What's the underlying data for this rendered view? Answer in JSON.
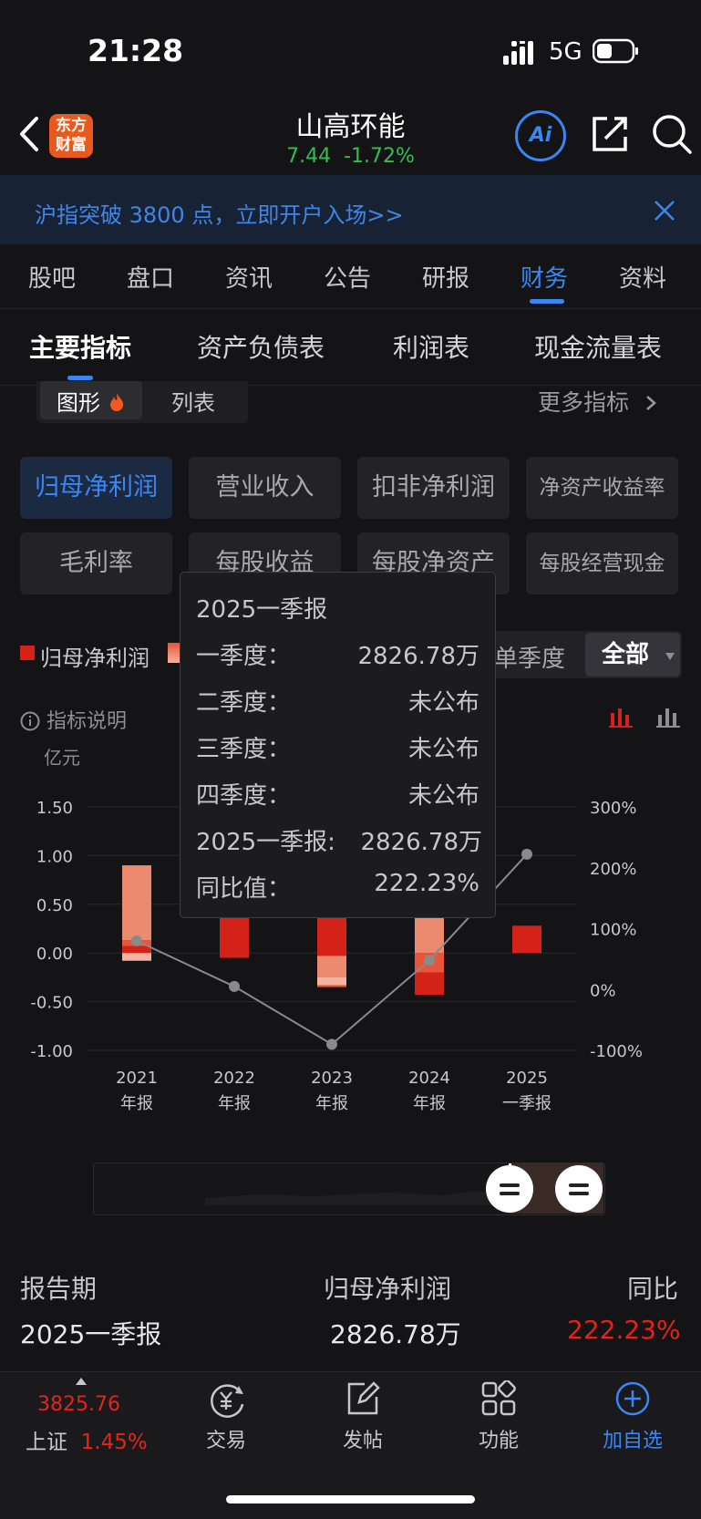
{
  "status": {
    "time": "21:28",
    "network": "5G"
  },
  "header": {
    "logo_line1": "东方",
    "logo_line2": "财富",
    "stock_name": "山高环能",
    "price": "7.44",
    "change": "-1.72%",
    "ai_label": "Ai"
  },
  "banner": {
    "text": "沪指突破 3800 点，立即开户入场>>"
  },
  "tabs": [
    "股吧",
    "盘口",
    "资讯",
    "公告",
    "研报",
    "财务",
    "资料"
  ],
  "subtabs": [
    "主要指标",
    "资产负债表",
    "利润表",
    "现金流量表"
  ],
  "view": {
    "graph": "图形",
    "list": "列表",
    "more": "更多指标"
  },
  "chips": [
    "归母净利润",
    "营业收入",
    "扣非净利润",
    "净资产收益率",
    "毛利率",
    "每股收益",
    "每股净资产",
    "每股经营现金"
  ],
  "legend": {
    "label": "归母净利润",
    "color": "#d52218"
  },
  "period": {
    "single": "单季度",
    "all": "全部"
  },
  "info": {
    "label": "指标说明"
  },
  "colors": {
    "q1": "#d52218",
    "q2": "#e8553b",
    "q3": "#ec8a70",
    "q4": "#f3b3a1",
    "single": "#d52218",
    "line": "#8a8a8a"
  },
  "chart_data": {
    "type": "bar",
    "unit_left": "亿元",
    "categories": [
      "2021\n年报",
      "2022\n年报",
      "2023\n年报",
      "2024\n年报",
      "2025\n一季报"
    ],
    "x_line1": [
      "2021",
      "2022",
      "2023",
      "2024",
      "2025"
    ],
    "x_line2": [
      "年报",
      "年报",
      "年报",
      "年报",
      "一季报"
    ],
    "y_left_ticks": [
      "1.50",
      "1.00",
      "0.50",
      "0.00",
      "-0.50",
      "-1.00"
    ],
    "y_left_range": [
      -1.0,
      1.5
    ],
    "y_right_ticks": [
      "300%",
      "200%",
      "100%",
      "0%",
      "-100%"
    ],
    "y_right_range": [
      -100,
      300
    ],
    "stacks": [
      [
        [
          0.0,
          0.07
        ],
        [
          0.07,
          0.13
        ],
        [
          0.13,
          0.9
        ],
        [
          -0.08,
          0.0
        ]
      ],
      [
        [
          -0.05,
          0.4
        ],
        [
          0.4,
          0.5
        ],
        [
          0.5,
          0.6
        ],
        [
          -0.05,
          -0.05
        ]
      ],
      [
        [
          -0.35,
          0.4
        ],
        [
          -0.35,
          -0.25
        ],
        [
          -0.25,
          -0.03
        ],
        [
          -0.33,
          -0.25
        ]
      ],
      [
        [
          -0.43,
          -0.2
        ],
        [
          -0.2,
          0.0
        ],
        [
          0.0,
          0.4
        ],
        [
          0.4,
          0.6
        ]
      ],
      [
        [
          0.0,
          0.28
        ]
      ]
    ],
    "yoy_percent": [
      80,
      5,
      -90,
      48,
      222.23
    ]
  },
  "tooltip": {
    "title": "2025一季报",
    "rows": [
      {
        "label": "一季度：",
        "value": "2826.78万"
      },
      {
        "label": "二季度：",
        "value": "未公布"
      },
      {
        "label": "三季度：",
        "value": "未公布"
      },
      {
        "label": "四季度：",
        "value": "未公布"
      },
      {
        "label": "2025一季报:",
        "value": "2826.78万"
      },
      {
        "label": "同比值：",
        "value": "222.23%"
      }
    ]
  },
  "table": {
    "h_period": "报告期",
    "h_metric": "归母净利润",
    "h_yoy": "同比",
    "period": "2025一季报",
    "metric": "2826.78万",
    "yoy": "222.23%"
  },
  "bottom_nav": {
    "index_value": "3825.76",
    "index_name": "上证",
    "index_change": "1.45%",
    "trade": "交易",
    "post": "发帖",
    "func": "功能",
    "add": "加自选"
  }
}
